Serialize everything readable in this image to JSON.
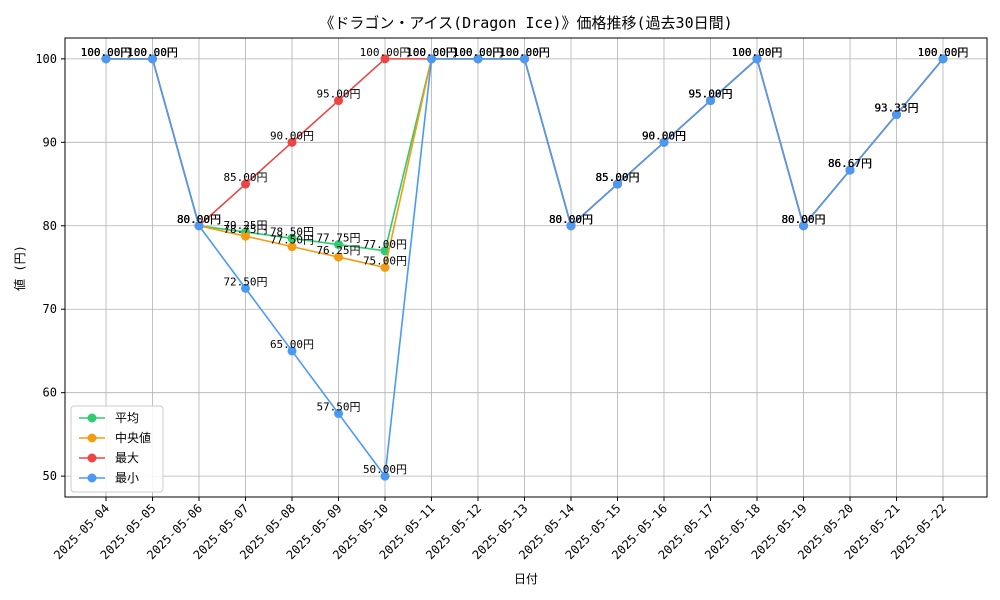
{
  "chart_data": {
    "type": "line",
    "title": "《ドラゴン・アイス(Dragon Ice)》価格推移(過去30日間)",
    "xlabel": "日付",
    "ylabel": "値 (円)",
    "ylim": [
      47.5,
      102.5
    ],
    "yticks": [
      50,
      60,
      70,
      80,
      90,
      100
    ],
    "grid": true,
    "legend_position": "lower-left",
    "value_suffix": "円",
    "categories": [
      "2025-05-04",
      "2025-05-05",
      "2025-05-06",
      "2025-05-07",
      "2025-05-08",
      "2025-05-09",
      "2025-05-10",
      "2025-05-11",
      "2025-05-12",
      "2025-05-13",
      "2025-05-14",
      "2025-05-15",
      "2025-05-16",
      "2025-05-17",
      "2025-05-18",
      "2025-05-19",
      "2025-05-20",
      "2025-05-21",
      "2025-05-22"
    ],
    "series": [
      {
        "name": "平均",
        "color": "#2ecc71",
        "values": [
          100,
          100,
          80,
          79.25,
          78.5,
          77.75,
          77,
          100,
          100,
          100,
          80,
          85,
          90,
          95,
          100,
          80,
          86.67,
          93.33,
          100
        ]
      },
      {
        "name": "中央値",
        "color": "#f39c12",
        "values": [
          100,
          100,
          80,
          78.75,
          77.5,
          76.25,
          75,
          100,
          100,
          100,
          80,
          85,
          90,
          95,
          100,
          80,
          86.67,
          93.33,
          100
        ]
      },
      {
        "name": "最大",
        "color": "#ef4444",
        "values": [
          100,
          100,
          80,
          85,
          90,
          95,
          100,
          100,
          100,
          100,
          80,
          85,
          90,
          95,
          100,
          80,
          86.67,
          93.33,
          100
        ]
      },
      {
        "name": "最小",
        "color": "#4a9af5",
        "values": [
          100,
          100,
          80,
          72.5,
          65,
          57.5,
          50,
          100,
          100,
          100,
          80,
          85,
          90,
          95,
          100,
          80,
          86.67,
          93.33,
          100
        ]
      }
    ]
  }
}
